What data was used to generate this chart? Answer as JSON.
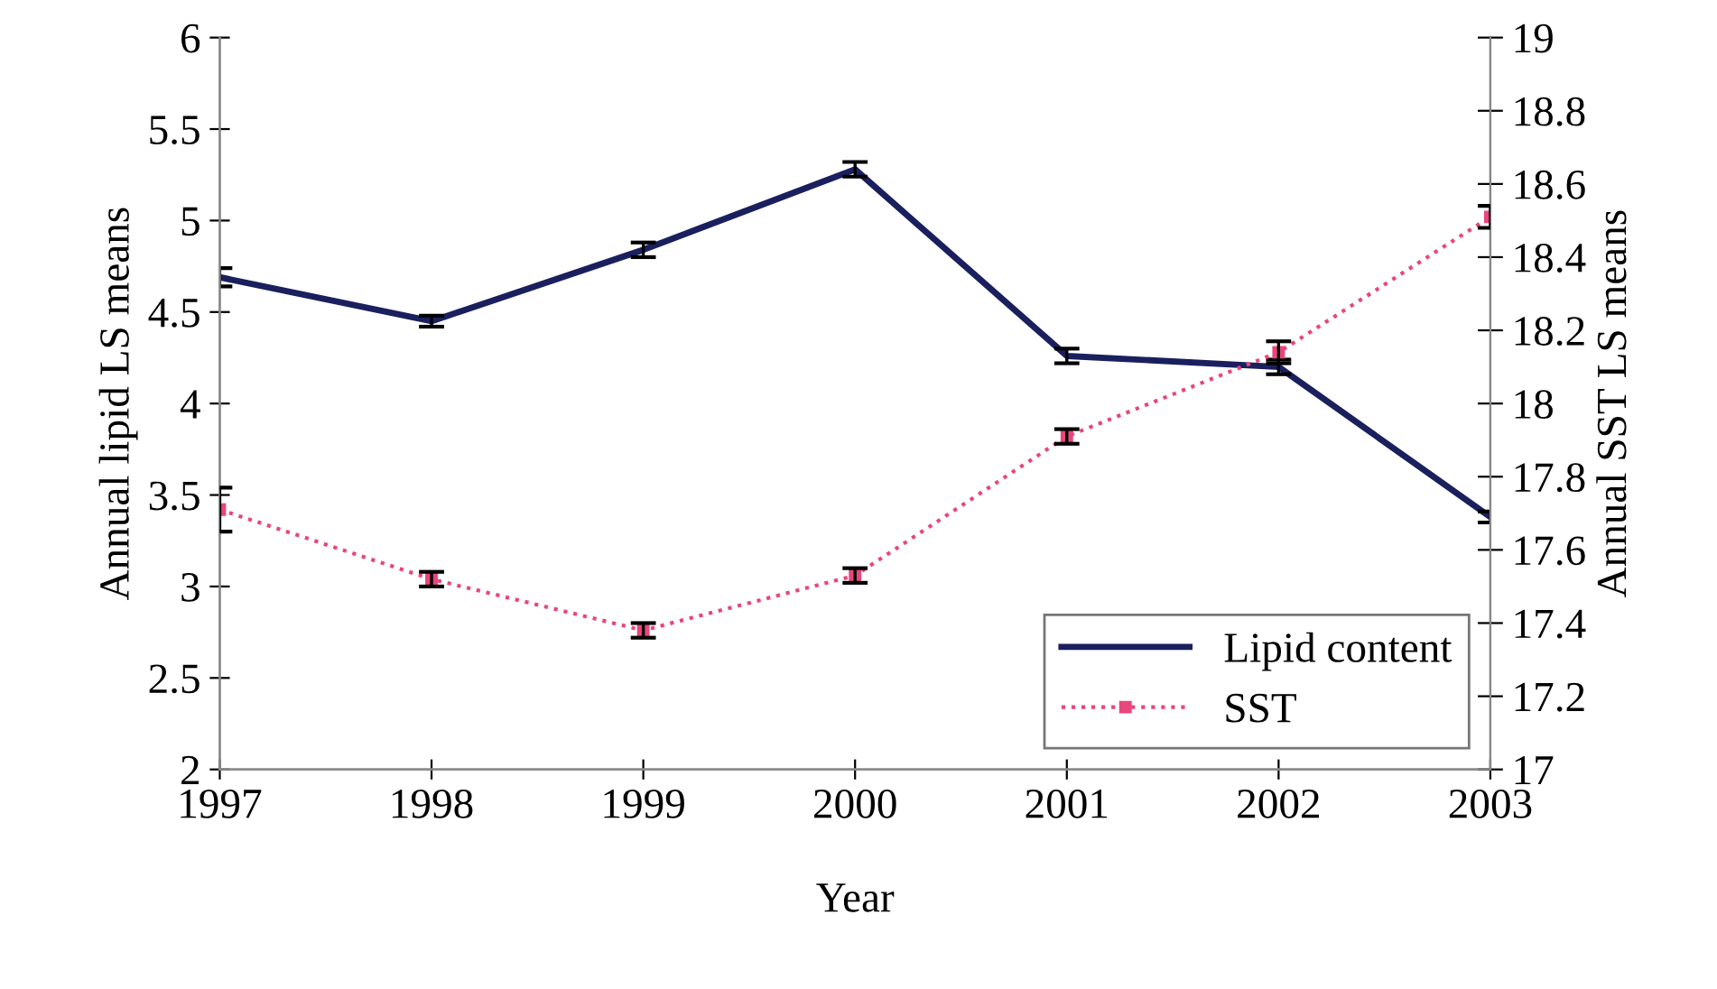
{
  "chart_data": {
    "type": "line",
    "xlabel": "Year",
    "ylabel": "Annual lipid LS means",
    "y2label": "Annual SST LS means",
    "categories": [
      "1997",
      "1998",
      "1999",
      "2000",
      "2001",
      "2002",
      "2003"
    ],
    "series": [
      {
        "name": "Lipid content",
        "color": "#1a1f5e",
        "values": [
          4.69,
          4.45,
          4.84,
          5.28,
          4.26,
          4.2,
          3.38
        ],
        "errors": [
          0.05,
          0.03,
          0.04,
          0.04,
          0.04,
          0.04,
          0.03
        ],
        "line_style": "solid",
        "marker": "none"
      },
      {
        "name": "SST",
        "color": "#e8467c",
        "axis": "y2",
        "values": [
          17.71,
          17.52,
          17.38,
          17.53,
          17.91,
          18.14,
          18.51
        ],
        "errors": [
          0.06,
          0.02,
          0.02,
          0.02,
          0.02,
          0.03,
          0.03
        ],
        "line_style": "dotted",
        "marker": "square"
      }
    ],
    "ylim": [
      2,
      6
    ],
    "yticks": [
      2,
      {
        "value": 2.5,
        "label": "2.5"
      },
      3,
      {
        "value": 3.5,
        "label": "3.5"
      },
      4,
      {
        "value": 4.5,
        "label": "4.5"
      },
      5,
      {
        "value": 5.5,
        "label": "5.5"
      },
      6
    ],
    "y2lim": [
      17,
      19
    ],
    "y2ticks": [
      17,
      {
        "value": 17.2,
        "label": "17.2"
      },
      {
        "value": 17.4,
        "label": "17.4"
      },
      {
        "value": 17.6,
        "label": "17.6"
      },
      {
        "value": 17.8,
        "label": "17.8"
      },
      18,
      {
        "value": 18.2,
        "label": "18.2"
      },
      {
        "value": 18.4,
        "label": "18.4"
      },
      {
        "value": 18.6,
        "label": "18.6"
      },
      {
        "value": 18.8,
        "label": "18.8"
      },
      19
    ],
    "grid": false,
    "legend": "bottom right"
  }
}
